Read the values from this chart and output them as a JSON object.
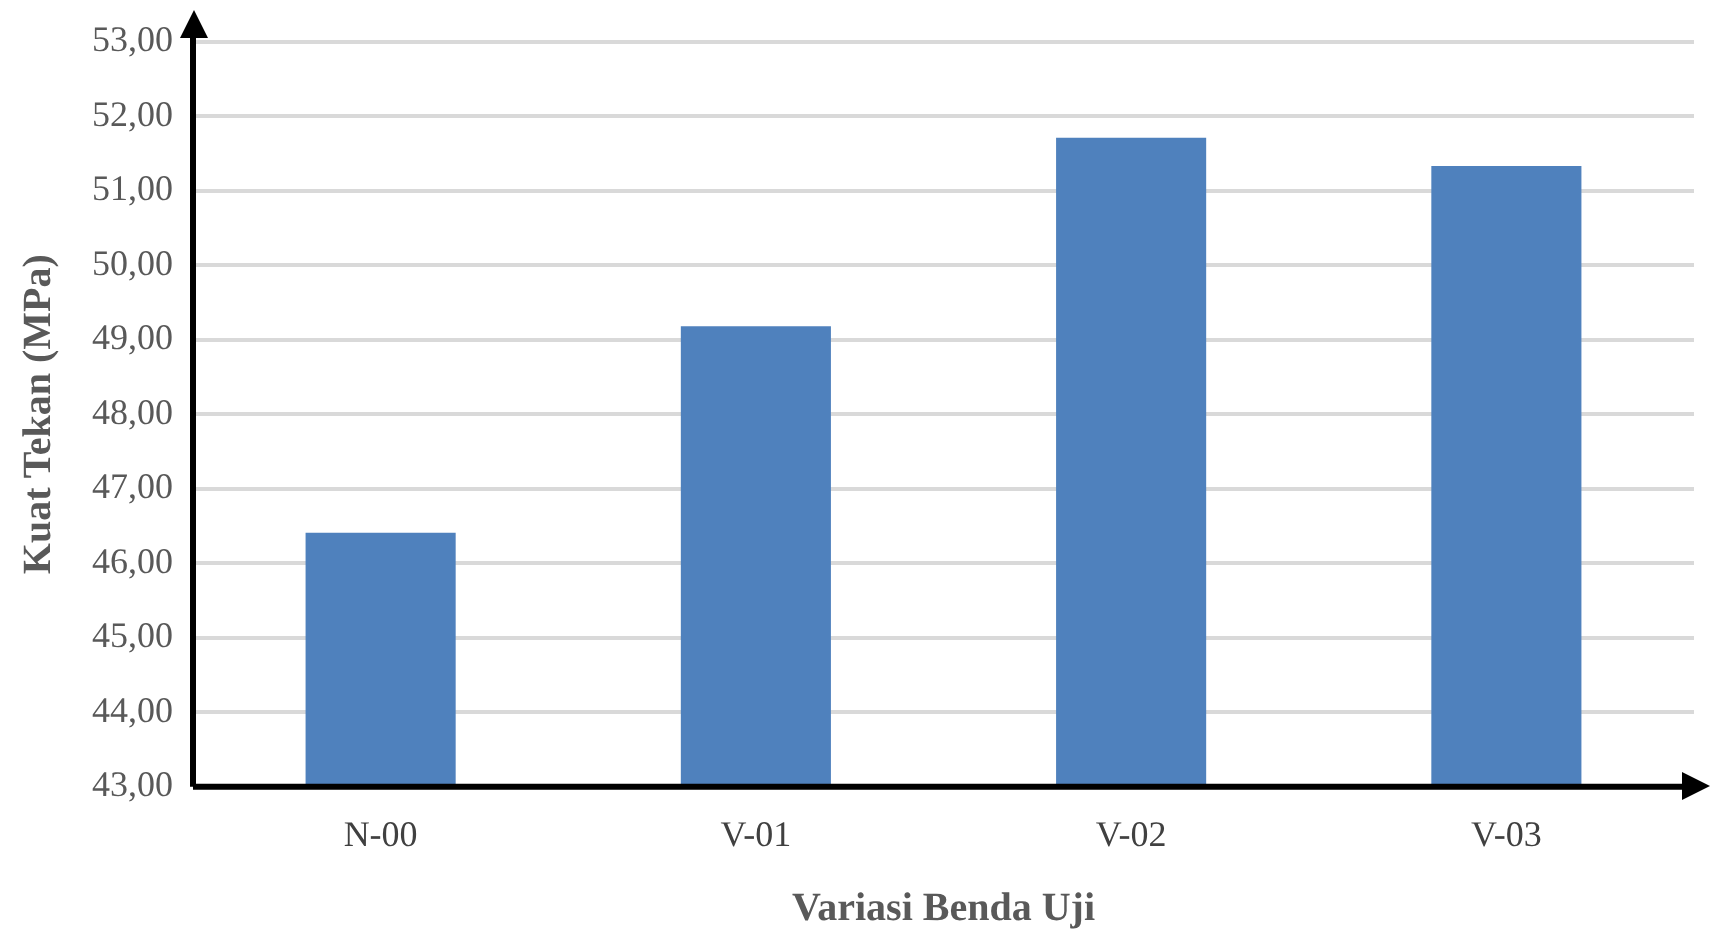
{
  "chart_data": {
    "type": "bar",
    "xlabel": "Variasi Benda Uji",
    "ylabel": "Kuat Tekan (MPa)",
    "categories": [
      "N-00",
      "V-01",
      "V-02",
      "V-03"
    ],
    "values": [
      46.41,
      49.18,
      51.71,
      51.33
    ],
    "color": "#4f81bd",
    "ylim": [
      43,
      53
    ],
    "yticks": [
      {
        "value": 43,
        "label": "43,00"
      },
      {
        "value": 44,
        "label": "44,00"
      },
      {
        "value": 45,
        "label": "45,00"
      },
      {
        "value": 46,
        "label": "46,00"
      },
      {
        "value": 47,
        "label": "47,00"
      },
      {
        "value": 48,
        "label": "48,00"
      },
      {
        "value": 49,
        "label": "49,00"
      },
      {
        "value": 50,
        "label": "50,00"
      },
      {
        "value": 51,
        "label": "51,00"
      },
      {
        "value": 52,
        "label": "52,00"
      },
      {
        "value": 53,
        "label": "53,00"
      }
    ],
    "grid": "y",
    "legend": false
  }
}
